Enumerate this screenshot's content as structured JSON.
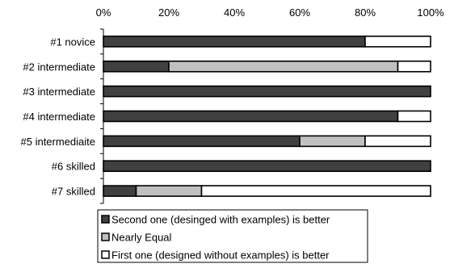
{
  "chart_data": {
    "type": "bar",
    "orientation": "horizontal",
    "stacked": true,
    "percent": true,
    "categories": [
      "#1 novice",
      "#2 intermediate",
      "#3 intermediate",
      "#4 intermediate",
      "#5 intermediaite",
      "#6 skilled",
      "#7 skilled"
    ],
    "series": [
      {
        "name": "Second one (desinged with examples) is better",
        "values": [
          80,
          20,
          100,
          90,
          60,
          100,
          10
        ],
        "color": "#404040"
      },
      {
        "name": "Nearly Equal",
        "values": [
          0,
          70,
          0,
          0,
          20,
          0,
          20
        ],
        "color": "#c0c0c0"
      },
      {
        "name": "First one (designed without examples) is better",
        "values": [
          20,
          10,
          0,
          10,
          20,
          0,
          70
        ],
        "color": "#ffffff"
      }
    ],
    "xlim": [
      0,
      100
    ],
    "xticks": [
      "0%",
      "20%",
      "40%",
      "60%",
      "80%",
      "100%"
    ],
    "axis_position": "top",
    "grid": false,
    "legend_position": "bottom",
    "title": "",
    "xlabel": "",
    "ylabel": ""
  }
}
